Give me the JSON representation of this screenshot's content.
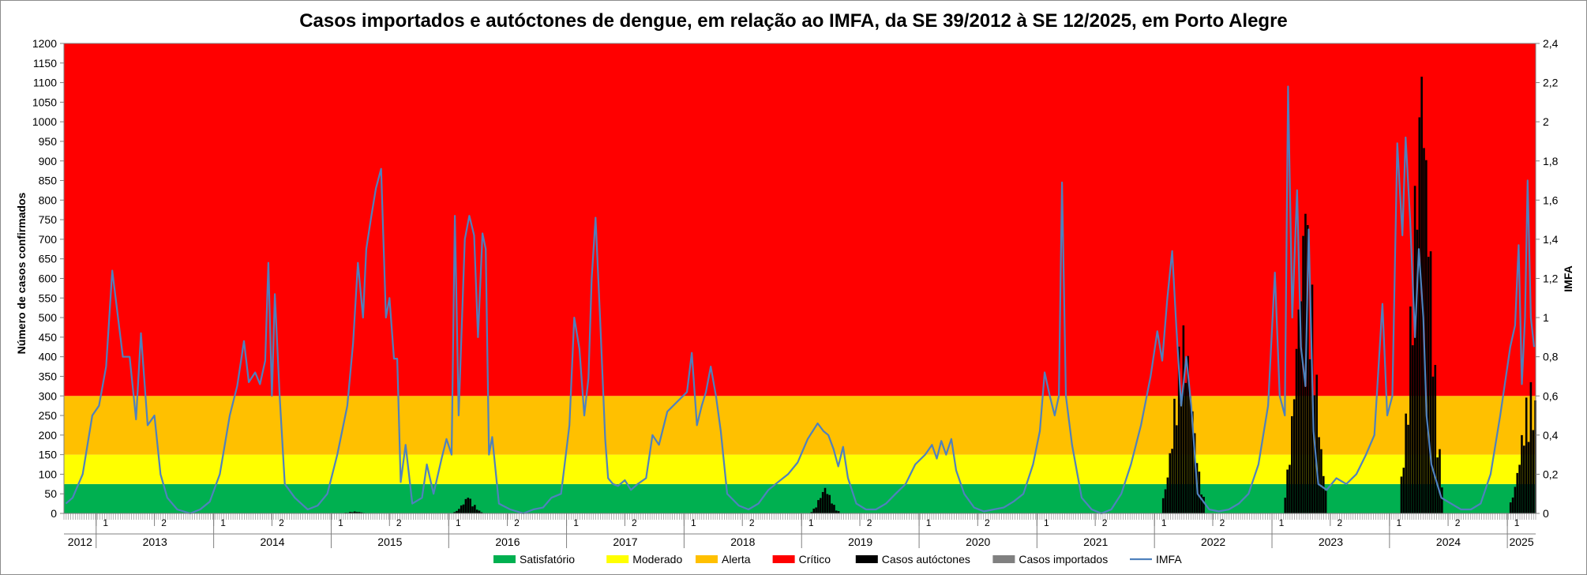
{
  "chart_data": {
    "type": "bar",
    "title": "Casos importados e autóctones de dengue, em relação ao IMFA, da SE 39/2012 à SE 12/2025, em Porto Alegre",
    "ylabel": "Número de casos confirmados",
    "y2label": "IMFA",
    "ylim": [
      0,
      1200
    ],
    "y2lim": [
      0,
      2.4
    ],
    "yticks": [
      "0",
      "50",
      "100",
      "150",
      "200",
      "250",
      "300",
      "350",
      "400",
      "450",
      "500",
      "550",
      "600",
      "650",
      "700",
      "750",
      "800",
      "850",
      "900",
      "950",
      "1000",
      "1050",
      "1100",
      "1150",
      "1200"
    ],
    "y2ticks": [
      "0",
      "0,2",
      "0,4",
      "0,6",
      "0,8",
      "1",
      "1,2",
      "1,4",
      "1,6",
      "1,8",
      "2",
      "2,2",
      "2,4"
    ],
    "years": [
      "2012",
      "2013",
      "2014",
      "2015",
      "2016",
      "2017",
      "2018",
      "2019",
      "2020",
      "2021",
      "2022",
      "2023",
      "2024",
      "2025"
    ],
    "semester_labels": [
      "1",
      "2"
    ],
    "bands": [
      {
        "name": "Satisfatório",
        "from": 0,
        "to": 75,
        "color": "#00b050"
      },
      {
        "name": "Moderado",
        "from": 75,
        "to": 150,
        "color": "#ffff00"
      },
      {
        "name": "Alerta",
        "from": 150,
        "to": 300,
        "color": "#ffc000"
      },
      {
        "name": "Crítico",
        "from": 300,
        "to": 1200,
        "color": "#ff0000"
      }
    ],
    "series": [
      {
        "name": "Casos autóctones",
        "color": "#000000",
        "peaks": [
          {
            "date": "2015-03-15",
            "value": 5
          },
          {
            "date": "2016-03-01",
            "value": 40
          },
          {
            "date": "2019-03-15",
            "value": 65
          },
          {
            "date": "2022-04-01",
            "value": 480
          },
          {
            "date": "2023-04-15",
            "value": 765
          },
          {
            "date": "2024-04-10",
            "value": 1115
          },
          {
            "date": "2025-03-15",
            "value": 335
          }
        ]
      },
      {
        "name": "Casos importados",
        "color": "#808080"
      },
      {
        "name": "IMFA",
        "color": "#4f81bd",
        "axis": "secondary",
        "points": [
          [
            "2012-09-29",
            0.05
          ],
          [
            "2012-10-20",
            0.08
          ],
          [
            "2012-11-20",
            0.2
          ],
          [
            "2012-12-20",
            0.5
          ],
          [
            "2013-01-10",
            0.55
          ],
          [
            "2013-02-01",
            0.75
          ],
          [
            "2013-02-20",
            1.24
          ],
          [
            "2013-03-10",
            1.0
          ],
          [
            "2013-03-25",
            0.8
          ],
          [
            "2013-04-15",
            0.8
          ],
          [
            "2013-05-05",
            0.48
          ],
          [
            "2013-05-20",
            0.92
          ],
          [
            "2013-06-10",
            0.45
          ],
          [
            "2013-07-01",
            0.5
          ],
          [
            "2013-07-20",
            0.2
          ],
          [
            "2013-08-10",
            0.08
          ],
          [
            "2013-09-10",
            0.02
          ],
          [
            "2013-10-20",
            0.0
          ],
          [
            "2013-11-20",
            0.02
          ],
          [
            "2013-12-20",
            0.06
          ],
          [
            "2014-01-20",
            0.2
          ],
          [
            "2014-02-20",
            0.5
          ],
          [
            "2014-03-15",
            0.65
          ],
          [
            "2014-04-05",
            0.88
          ],
          [
            "2014-04-20",
            0.67
          ],
          [
            "2014-05-10",
            0.72
          ],
          [
            "2014-05-25",
            0.66
          ],
          [
            "2014-06-10",
            0.78
          ],
          [
            "2014-06-20",
            1.28
          ],
          [
            "2014-07-01",
            0.6
          ],
          [
            "2014-07-10",
            1.12
          ],
          [
            "2014-07-25",
            0.6
          ],
          [
            "2014-08-10",
            0.15
          ],
          [
            "2014-09-10",
            0.08
          ],
          [
            "2014-10-20",
            0.02
          ],
          [
            "2014-11-20",
            0.04
          ],
          [
            "2014-12-20",
            0.1
          ],
          [
            "2015-01-20",
            0.3
          ],
          [
            "2015-02-20",
            0.55
          ],
          [
            "2015-03-10",
            0.87
          ],
          [
            "2015-03-25",
            1.28
          ],
          [
            "2015-04-10",
            1.0
          ],
          [
            "2015-04-20",
            1.35
          ],
          [
            "2015-05-05",
            1.51
          ],
          [
            "2015-05-20",
            1.66
          ],
          [
            "2015-06-05",
            1.76
          ],
          [
            "2015-06-20",
            1.0
          ],
          [
            "2015-07-01",
            1.1
          ],
          [
            "2015-07-15",
            0.79
          ],
          [
            "2015-07-25",
            0.79
          ],
          [
            "2015-08-05",
            0.16
          ],
          [
            "2015-08-20",
            0.35
          ],
          [
            "2015-09-10",
            0.05
          ],
          [
            "2015-10-10",
            0.08
          ],
          [
            "2015-10-25",
            0.25
          ],
          [
            "2015-11-15",
            0.1
          ],
          [
            "2015-12-10",
            0.28
          ],
          [
            "2015-12-25",
            0.38
          ],
          [
            "2016-01-10",
            0.3
          ],
          [
            "2016-01-20",
            1.52
          ],
          [
            "2016-02-01",
            0.5
          ],
          [
            "2016-02-20",
            1.4
          ],
          [
            "2016-03-05",
            1.52
          ],
          [
            "2016-03-20",
            1.42
          ],
          [
            "2016-04-01",
            0.9
          ],
          [
            "2016-04-15",
            1.43
          ],
          [
            "2016-04-25",
            1.35
          ],
          [
            "2016-05-05",
            0.3
          ],
          [
            "2016-05-15",
            0.39
          ],
          [
            "2016-06-05",
            0.05
          ],
          [
            "2016-07-10",
            0.02
          ],
          [
            "2016-08-20",
            0.0
          ],
          [
            "2016-09-20",
            0.02
          ],
          [
            "2016-10-20",
            0.03
          ],
          [
            "2016-11-15",
            0.08
          ],
          [
            "2016-12-15",
            0.1
          ],
          [
            "2017-01-10",
            0.45
          ],
          [
            "2017-01-25",
            1.0
          ],
          [
            "2017-02-10",
            0.84
          ],
          [
            "2017-02-25",
            0.5
          ],
          [
            "2017-03-10",
            0.69
          ],
          [
            "2017-03-20",
            1.2
          ],
          [
            "2017-04-01",
            1.51
          ],
          [
            "2017-04-15",
            1.0
          ],
          [
            "2017-05-01",
            0.38
          ],
          [
            "2017-05-10",
            0.18
          ],
          [
            "2017-05-25",
            0.15
          ],
          [
            "2017-06-10",
            0.14
          ],
          [
            "2017-07-01",
            0.17
          ],
          [
            "2017-07-20",
            0.12
          ],
          [
            "2017-08-10",
            0.15
          ],
          [
            "2017-09-05",
            0.18
          ],
          [
            "2017-09-25",
            0.4
          ],
          [
            "2017-10-15",
            0.35
          ],
          [
            "2017-11-10",
            0.52
          ],
          [
            "2018-01-10",
            0.62
          ],
          [
            "2018-01-25",
            0.82
          ],
          [
            "2018-02-10",
            0.45
          ],
          [
            "2018-02-25",
            0.55
          ],
          [
            "2018-03-10",
            0.62
          ],
          [
            "2018-03-25",
            0.75
          ],
          [
            "2018-04-10",
            0.6
          ],
          [
            "2018-04-25",
            0.42
          ],
          [
            "2018-05-15",
            0.1
          ],
          [
            "2018-06-20",
            0.04
          ],
          [
            "2018-07-20",
            0.02
          ],
          [
            "2018-08-20",
            0.05
          ],
          [
            "2018-09-20",
            0.12
          ],
          [
            "2018-10-20",
            0.16
          ],
          [
            "2018-11-20",
            0.2
          ],
          [
            "2018-12-20",
            0.26
          ],
          [
            "2019-01-20",
            0.38
          ],
          [
            "2019-02-20",
            0.46
          ],
          [
            "2019-03-10",
            0.42
          ],
          [
            "2019-03-25",
            0.4
          ],
          [
            "2019-04-10",
            0.33
          ],
          [
            "2019-04-25",
            0.24
          ],
          [
            "2019-05-10",
            0.34
          ],
          [
            "2019-05-25",
            0.18
          ],
          [
            "2019-06-20",
            0.05
          ],
          [
            "2019-07-20",
            0.02
          ],
          [
            "2019-08-20",
            0.02
          ],
          [
            "2019-09-20",
            0.05
          ],
          [
            "2019-10-20",
            0.1
          ],
          [
            "2019-11-20",
            0.15
          ],
          [
            "2019-12-20",
            0.25
          ],
          [
            "2020-01-20",
            0.3
          ],
          [
            "2020-02-10",
            0.35
          ],
          [
            "2020-02-25",
            0.28
          ],
          [
            "2020-03-10",
            0.37
          ],
          [
            "2020-03-25",
            0.3
          ],
          [
            "2020-04-10",
            0.38
          ],
          [
            "2020-04-25",
            0.22
          ],
          [
            "2020-05-20",
            0.1
          ],
          [
            "2020-06-20",
            0.03
          ],
          [
            "2020-07-20",
            0.01
          ],
          [
            "2020-08-20",
            0.02
          ],
          [
            "2020-09-20",
            0.03
          ],
          [
            "2020-10-20",
            0.06
          ],
          [
            "2020-11-20",
            0.1
          ],
          [
            "2020-12-20",
            0.25
          ],
          [
            "2021-01-10",
            0.42
          ],
          [
            "2021-01-25",
            0.72
          ],
          [
            "2021-02-10",
            0.6
          ],
          [
            "2021-02-25",
            0.5
          ],
          [
            "2021-03-10",
            0.6
          ],
          [
            "2021-03-20",
            1.69
          ],
          [
            "2021-04-01",
            0.6
          ],
          [
            "2021-04-20",
            0.35
          ],
          [
            "2021-05-20",
            0.08
          ],
          [
            "2021-06-20",
            0.02
          ],
          [
            "2021-07-20",
            0.0
          ],
          [
            "2021-08-20",
            0.02
          ],
          [
            "2021-09-20",
            0.1
          ],
          [
            "2021-10-20",
            0.25
          ],
          [
            "2021-11-20",
            0.45
          ],
          [
            "2021-12-20",
            0.7
          ],
          [
            "2022-01-10",
            0.93
          ],
          [
            "2022-01-25",
            0.78
          ],
          [
            "2022-02-10",
            1.1
          ],
          [
            "2022-02-25",
            1.34
          ],
          [
            "2022-03-10",
            0.95
          ],
          [
            "2022-03-25",
            0.55
          ],
          [
            "2022-04-10",
            0.8
          ],
          [
            "2022-04-25",
            0.55
          ],
          [
            "2022-05-15",
            0.1
          ],
          [
            "2022-06-20",
            0.02
          ],
          [
            "2022-07-20",
            0.01
          ],
          [
            "2022-08-20",
            0.02
          ],
          [
            "2022-09-20",
            0.05
          ],
          [
            "2022-10-20",
            0.1
          ],
          [
            "2022-11-20",
            0.25
          ],
          [
            "2022-12-20",
            0.55
          ],
          [
            "2023-01-10",
            1.23
          ],
          [
            "2023-01-25",
            0.6
          ],
          [
            "2023-02-10",
            0.5
          ],
          [
            "2023-02-20",
            2.18
          ],
          [
            "2023-03-05",
            1.0
          ],
          [
            "2023-03-20",
            1.65
          ],
          [
            "2023-04-01",
            0.85
          ],
          [
            "2023-04-15",
            0.65
          ],
          [
            "2023-04-25",
            1.45
          ],
          [
            "2023-05-10",
            0.42
          ],
          [
            "2023-05-25",
            0.15
          ],
          [
            "2023-06-20",
            0.12
          ],
          [
            "2023-07-20",
            0.18
          ],
          [
            "2023-08-20",
            0.15
          ],
          [
            "2023-09-20",
            0.2
          ],
          [
            "2023-10-20",
            0.3
          ],
          [
            "2023-11-15",
            0.4
          ],
          [
            "2023-12-10",
            1.07
          ],
          [
            "2023-12-25",
            0.5
          ],
          [
            "2024-01-10",
            0.6
          ],
          [
            "2024-01-25",
            1.89
          ],
          [
            "2024-02-10",
            1.42
          ],
          [
            "2024-02-20",
            1.92
          ],
          [
            "2024-03-05",
            1.5
          ],
          [
            "2024-03-20",
            0.9
          ],
          [
            "2024-04-01",
            1.35
          ],
          [
            "2024-04-15",
            1.0
          ],
          [
            "2024-04-25",
            0.5
          ],
          [
            "2024-05-10",
            0.25
          ],
          [
            "2024-06-10",
            0.08
          ],
          [
            "2024-07-10",
            0.05
          ],
          [
            "2024-08-10",
            0.02
          ],
          [
            "2024-09-10",
            0.02
          ],
          [
            "2024-10-10",
            0.05
          ],
          [
            "2024-11-10",
            0.2
          ],
          [
            "2024-12-10",
            0.5
          ],
          [
            "2025-01-10",
            0.85
          ],
          [
            "2025-01-25",
            0.96
          ],
          [
            "2025-02-05",
            1.37
          ],
          [
            "2025-02-15",
            0.66
          ],
          [
            "2025-02-25",
            1.0
          ],
          [
            "2025-03-05",
            1.7
          ],
          [
            "2025-03-15",
            1.0
          ],
          [
            "2025-03-25",
            0.85
          ]
        ]
      }
    ],
    "legend_position": "bottom",
    "grid": false
  },
  "legend": [
    {
      "label": "Satisfatório",
      "color": "#00b050"
    },
    {
      "label": "Moderado",
      "color": "#ffff00"
    },
    {
      "label": "Alerta",
      "color": "#ffc000"
    },
    {
      "label": "Crítico",
      "color": "#ff0000"
    },
    {
      "label": "Casos autóctones",
      "color": "#000000"
    },
    {
      "label": "Casos importados",
      "color": "#808080"
    },
    {
      "label": "IMFA",
      "color": "#4f81bd"
    }
  ]
}
